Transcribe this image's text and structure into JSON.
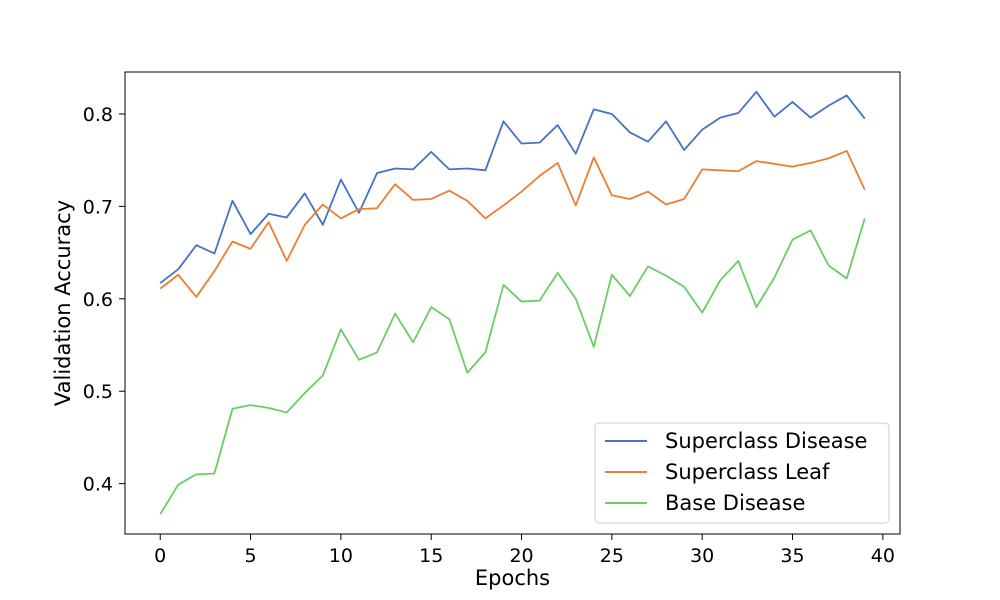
{
  "chart_data": {
    "type": "line",
    "title": "",
    "xlabel": "Epochs",
    "ylabel": "Validation Accuracy",
    "xlim": [
      -1.95,
      40.95
    ],
    "ylim": [
      0.3455,
      0.8454
    ],
    "xticks": [
      0,
      5,
      10,
      15,
      20,
      25,
      30,
      35,
      40
    ],
    "yticks": [
      0.4,
      0.5,
      0.6,
      0.7,
      0.8
    ],
    "xtick_labels": [
      "0",
      "5",
      "10",
      "15",
      "20",
      "25",
      "30",
      "35",
      "40"
    ],
    "ytick_labels": [
      "0.4",
      "0.5",
      "0.6",
      "0.7",
      "0.8"
    ],
    "grid": false,
    "legend_position": "lower-right",
    "x": [
      0,
      1,
      2,
      3,
      4,
      5,
      6,
      7,
      8,
      9,
      10,
      11,
      12,
      13,
      14,
      15,
      16,
      17,
      18,
      19,
      20,
      21,
      22,
      23,
      24,
      25,
      26,
      27,
      28,
      29,
      30,
      31,
      32,
      33,
      34,
      35,
      36,
      37,
      38,
      39
    ],
    "series": [
      {
        "name": "Superclass Disease",
        "color": "#4472c4",
        "values": [
          0.617,
          0.632,
          0.658,
          0.649,
          0.706,
          0.67,
          0.692,
          0.688,
          0.714,
          0.68,
          0.729,
          0.693,
          0.736,
          0.741,
          0.74,
          0.759,
          0.74,
          0.741,
          0.739,
          0.792,
          0.768,
          0.769,
          0.788,
          0.757,
          0.805,
          0.8,
          0.78,
          0.77,
          0.792,
          0.761,
          0.783,
          0.796,
          0.801,
          0.824,
          0.797,
          0.813,
          0.796,
          0.809,
          0.82,
          0.795
        ]
      },
      {
        "name": "Superclass Leaf",
        "color": "#ed7d31",
        "values": [
          0.611,
          0.626,
          0.602,
          0.63,
          0.662,
          0.654,
          0.683,
          0.641,
          0.68,
          0.702,
          0.687,
          0.697,
          0.698,
          0.724,
          0.707,
          0.708,
          0.717,
          0.706,
          0.687,
          0.701,
          0.716,
          0.733,
          0.747,
          0.701,
          0.753,
          0.712,
          0.708,
          0.716,
          0.702,
          0.708,
          0.74,
          0.739,
          0.738,
          0.749,
          0.746,
          0.743,
          0.747,
          0.752,
          0.76,
          0.718
        ]
      },
      {
        "name": "Base Disease",
        "color": "#6acc65",
        "values": [
          0.367,
          0.399,
          0.41,
          0.411,
          0.481,
          0.485,
          0.482,
          0.477,
          0.498,
          0.517,
          0.567,
          0.534,
          0.542,
          0.584,
          0.553,
          0.591,
          0.578,
          0.52,
          0.542,
          0.615,
          0.597,
          0.598,
          0.628,
          0.6,
          0.548,
          0.626,
          0.603,
          0.635,
          0.625,
          0.613,
          0.585,
          0.62,
          0.641,
          0.591,
          0.623,
          0.664,
          0.674,
          0.636,
          0.622,
          0.687
        ]
      }
    ]
  }
}
